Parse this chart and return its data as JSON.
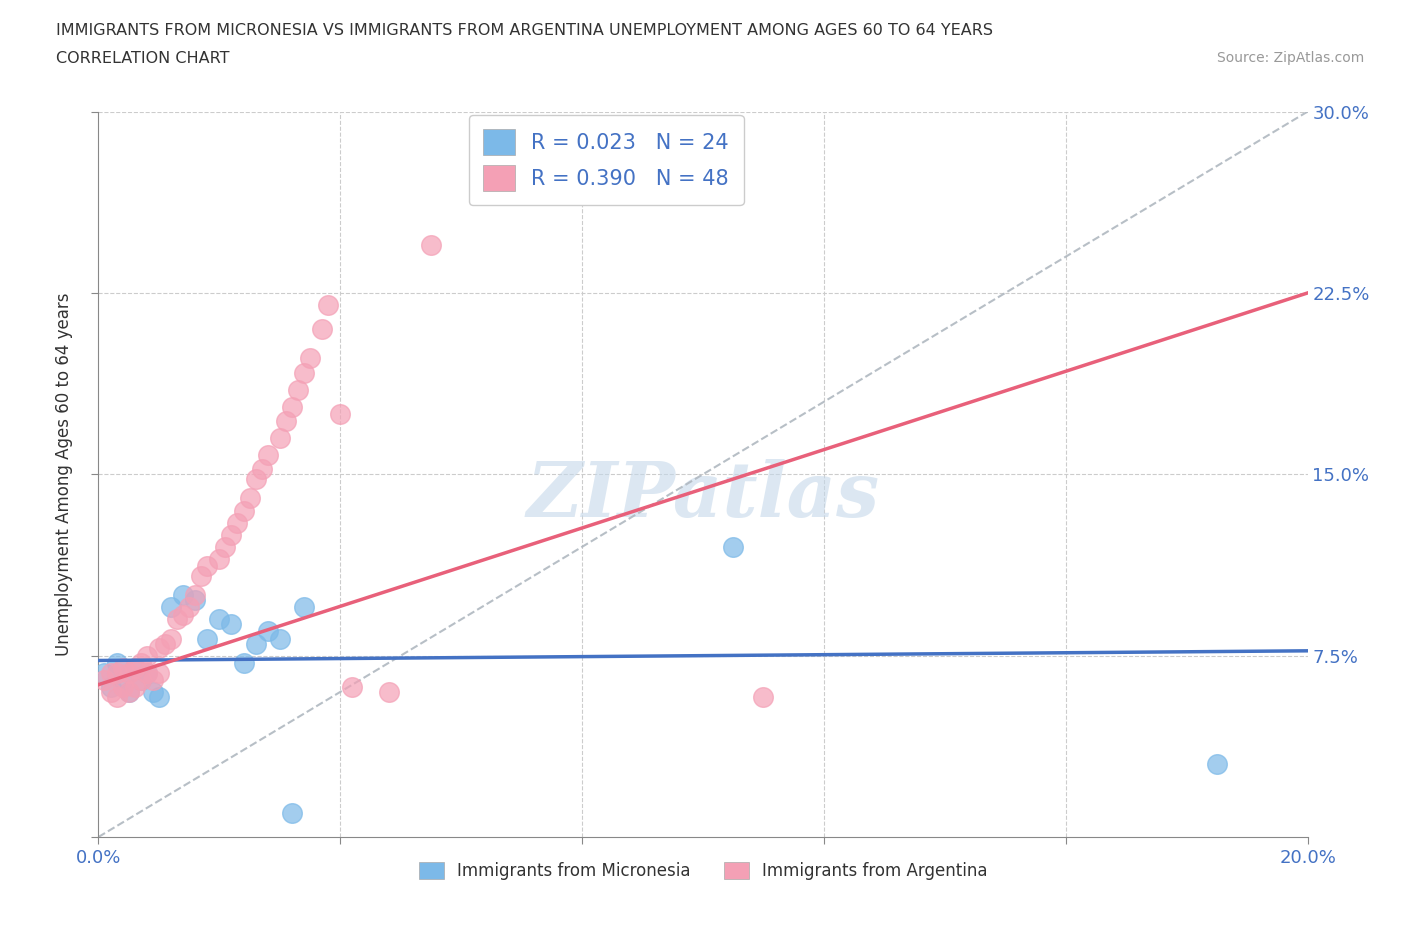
{
  "title_line1": "IMMIGRANTS FROM MICRONESIA VS IMMIGRANTS FROM ARGENTINA UNEMPLOYMENT AMONG AGES 60 TO 64 YEARS",
  "title_line2": "CORRELATION CHART",
  "source": "Source: ZipAtlas.com",
  "ylabel": "Unemployment Among Ages 60 to 64 years",
  "xlim": [
    0.0,
    0.2
  ],
  "ylim": [
    0.0,
    0.3
  ],
  "xtick_positions": [
    0.0,
    0.04,
    0.08,
    0.12,
    0.16,
    0.2
  ],
  "xtick_labels": [
    "0.0%",
    "",
    "",
    "",
    "",
    "20.0%"
  ],
  "ytick_positions": [
    0.0,
    0.075,
    0.15,
    0.225,
    0.3
  ],
  "ytick_labels_right": [
    "",
    "7.5%",
    "15.0%",
    "22.5%",
    "30.0%"
  ],
  "micronesia_color": "#7cb9e8",
  "argentina_color": "#f4a0b5",
  "micronesia_R": 0.023,
  "micronesia_N": 24,
  "argentina_R": 0.39,
  "argentina_N": 48,
  "watermark": "ZIPatlas",
  "micronesia_line_color": "#4472c4",
  "argentina_line_color": "#e8607a",
  "dash_line_color": "#b0b8c0",
  "micronesia_x": [
    0.001,
    0.002,
    0.003,
    0.004,
    0.005,
    0.006,
    0.007,
    0.008,
    0.009,
    0.01,
    0.011,
    0.012,
    0.013,
    0.015,
    0.016,
    0.018,
    0.02,
    0.022,
    0.024,
    0.026,
    0.03,
    0.032,
    0.105,
    0.185
  ],
  "micronesia_y": [
    0.068,
    0.062,
    0.055,
    0.065,
    0.06,
    0.058,
    0.065,
    0.06,
    0.058,
    0.068,
    0.1,
    0.095,
    0.072,
    0.095,
    0.1,
    0.075,
    0.095,
    0.09,
    0.065,
    0.082,
    0.082,
    0.01,
    0.12,
    0.03
  ],
  "argentina_x": [
    0.001,
    0.002,
    0.003,
    0.004,
    0.004,
    0.005,
    0.005,
    0.006,
    0.007,
    0.007,
    0.008,
    0.008,
    0.009,
    0.01,
    0.01,
    0.011,
    0.012,
    0.013,
    0.014,
    0.015,
    0.016,
    0.017,
    0.018,
    0.02,
    0.021,
    0.022,
    0.023,
    0.024,
    0.025,
    0.026,
    0.027,
    0.028,
    0.029,
    0.03,
    0.031,
    0.032,
    0.033,
    0.034,
    0.035,
    0.036,
    0.037,
    0.038,
    0.04,
    0.042,
    0.048,
    0.055,
    0.11,
    0.045
  ],
  "argentina_y": [
    0.065,
    0.06,
    0.058,
    0.058,
    0.068,
    0.062,
    0.065,
    0.06,
    0.062,
    0.068,
    0.065,
    0.07,
    0.062,
    0.06,
    0.07,
    0.068,
    0.075,
    0.078,
    0.08,
    0.082,
    0.085,
    0.09,
    0.088,
    0.092,
    0.095,
    0.1,
    0.105,
    0.11,
    0.112,
    0.115,
    0.12,
    0.125,
    0.13,
    0.132,
    0.135,
    0.14,
    0.145,
    0.15,
    0.155,
    0.16,
    0.17,
    0.175,
    0.18,
    0.195,
    0.06,
    0.245,
    0.058,
    0.075
  ]
}
